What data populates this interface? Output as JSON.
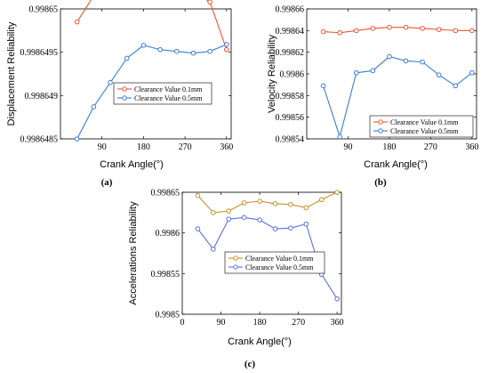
{
  "chart_data": [
    {
      "type": "line",
      "panel": "(a)",
      "xlabel": "Crank Angle(°)",
      "ylabel": "Displacement Reliability",
      "xlim": [
        0,
        370
      ],
      "ylim": [
        0.9986485,
        0.99865
      ],
      "xticks": [
        "90",
        "180",
        "270",
        "360"
      ],
      "xtick_values": [
        90,
        180,
        270,
        360
      ],
      "yticks": [
        "0.9986485",
        "0.998649",
        "0.9986495",
        "0.99865"
      ],
      "ytick_values": [
        0.9986485,
        0.998649,
        0.9986495,
        0.99865
      ],
      "legend_position": "center-right",
      "series": [
        {
          "name": "Clearance Value 0.1mm",
          "color": "#e8552e",
          "x": [
            36,
            72,
            108,
            144,
            180,
            216,
            252,
            288,
            324,
            360
          ],
          "y": [
            0.99864985,
            0.99865015,
            0.9986502,
            0.9986502,
            0.9986502,
            0.9986502,
            0.99865022,
            0.9986502,
            0.99865008,
            0.99864953
          ]
        },
        {
          "name": "Clearance Value 0.5mm",
          "color": "#3a7bd5",
          "x": [
            36,
            72,
            108,
            144,
            180,
            216,
            252,
            288,
            324,
            360
          ],
          "y": [
            0.9986485,
            0.99864887,
            0.99864915,
            0.99864943,
            0.99864958,
            0.99864953,
            0.99864951,
            0.99864949,
            0.99864951,
            0.99864959
          ]
        }
      ]
    },
    {
      "type": "line",
      "panel": "(b)",
      "xlabel": "Crank Angle(°)",
      "ylabel": "Velocity Reliability",
      "xlim": [
        0,
        370
      ],
      "ylim": [
        0.99854,
        0.99866
      ],
      "xticks": [
        "90",
        "180",
        "270",
        "360"
      ],
      "xtick_values": [
        90,
        180,
        270,
        360
      ],
      "yticks": [
        "0.99854",
        "0.99856",
        "0.99858",
        "0.9986",
        "0.99862",
        "0.99864",
        "0.99866"
      ],
      "ytick_values": [
        0.99854,
        0.99856,
        0.99858,
        0.9986,
        0.99862,
        0.99864,
        0.99866
      ],
      "legend_position": "bottom-right",
      "series": [
        {
          "name": "Clearance Value 0.1mm",
          "color": "#e8552e",
          "x": [
            36,
            72,
            108,
            144,
            180,
            216,
            252,
            288,
            324,
            360
          ],
          "y": [
            0.998639,
            0.998638,
            0.99864,
            0.998642,
            0.998643,
            0.998643,
            0.998642,
            0.998641,
            0.99864,
            0.99864
          ]
        },
        {
          "name": "Clearance Value 0.5mm",
          "color": "#3a7bd5",
          "x": [
            36,
            72,
            108,
            144,
            180,
            216,
            252,
            288,
            324,
            360
          ],
          "y": [
            0.998589,
            0.998542,
            0.998601,
            0.998603,
            0.998616,
            0.998612,
            0.998611,
            0.998599,
            0.998589,
            0.998601
          ]
        }
      ]
    },
    {
      "type": "line",
      "panel": "(c)",
      "xlabel": "Crank Angle(°)",
      "ylabel": "Accelerations Reliability",
      "xlim": [
        0,
        370
      ],
      "ylim": [
        0.9985,
        0.99865
      ],
      "xticks": [
        "0",
        "90",
        "180",
        "270",
        "360"
      ],
      "xtick_values": [
        0,
        90,
        180,
        270,
        360
      ],
      "yticks": [
        "0.9985",
        "0.99855",
        "0.9986",
        "0.99865"
      ],
      "ytick_values": [
        0.9985,
        0.99855,
        0.9986,
        0.99865
      ],
      "legend_position": "center-right",
      "series": [
        {
          "name": "Clearance Value 0.1mm",
          "color": "#c89028",
          "x": [
            36,
            72,
            108,
            144,
            180,
            216,
            252,
            288,
            324,
            360
          ],
          "y": [
            0.998646,
            0.998625,
            0.998627,
            0.998637,
            0.998639,
            0.998636,
            0.998635,
            0.998631,
            0.998641,
            0.99865
          ]
        },
        {
          "name": "Clearance Value 0.5mm",
          "color": "#5b6ee0",
          "x": [
            36,
            72,
            108,
            144,
            180,
            216,
            252,
            288,
            324,
            360
          ],
          "y": [
            0.998605,
            0.99858,
            0.998617,
            0.998619,
            0.998616,
            0.998605,
            0.998606,
            0.998611,
            0.998549,
            0.998519
          ]
        }
      ]
    }
  ]
}
